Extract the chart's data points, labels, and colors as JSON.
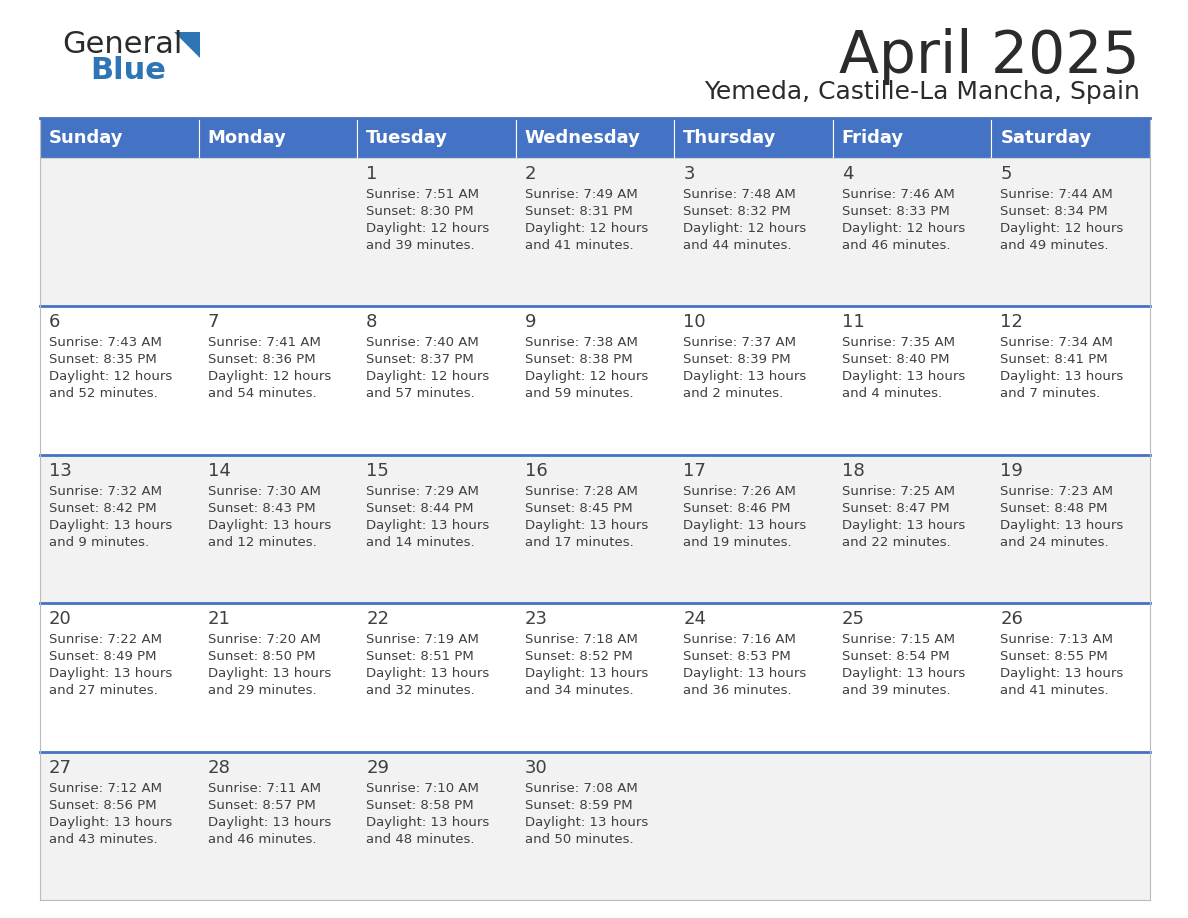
{
  "title": "April 2025",
  "subtitle": "Yemeda, Castille-La Mancha, Spain",
  "days_of_week": [
    "Sunday",
    "Monday",
    "Tuesday",
    "Wednesday",
    "Thursday",
    "Friday",
    "Saturday"
  ],
  "header_bg": "#4472C4",
  "header_text": "#FFFFFF",
  "cell_bg_light": "#F2F2F2",
  "cell_bg_white": "#FFFFFF",
  "row_line_color": "#4472C4",
  "text_color": "#404040",
  "calendar_data": [
    [
      {
        "day": null,
        "sunrise": null,
        "sunset": null,
        "daylight": null
      },
      {
        "day": null,
        "sunrise": null,
        "sunset": null,
        "daylight": null
      },
      {
        "day": 1,
        "sunrise": "7:51 AM",
        "sunset": "8:30 PM",
        "daylight": "12 hours and 39 minutes."
      },
      {
        "day": 2,
        "sunrise": "7:49 AM",
        "sunset": "8:31 PM",
        "daylight": "12 hours and 41 minutes."
      },
      {
        "day": 3,
        "sunrise": "7:48 AM",
        "sunset": "8:32 PM",
        "daylight": "12 hours and 44 minutes."
      },
      {
        "day": 4,
        "sunrise": "7:46 AM",
        "sunset": "8:33 PM",
        "daylight": "12 hours and 46 minutes."
      },
      {
        "day": 5,
        "sunrise": "7:44 AM",
        "sunset": "8:34 PM",
        "daylight": "12 hours and 49 minutes."
      }
    ],
    [
      {
        "day": 6,
        "sunrise": "7:43 AM",
        "sunset": "8:35 PM",
        "daylight": "12 hours and 52 minutes."
      },
      {
        "day": 7,
        "sunrise": "7:41 AM",
        "sunset": "8:36 PM",
        "daylight": "12 hours and 54 minutes."
      },
      {
        "day": 8,
        "sunrise": "7:40 AM",
        "sunset": "8:37 PM",
        "daylight": "12 hours and 57 minutes."
      },
      {
        "day": 9,
        "sunrise": "7:38 AM",
        "sunset": "8:38 PM",
        "daylight": "12 hours and 59 minutes."
      },
      {
        "day": 10,
        "sunrise": "7:37 AM",
        "sunset": "8:39 PM",
        "daylight": "13 hours and 2 minutes."
      },
      {
        "day": 11,
        "sunrise": "7:35 AM",
        "sunset": "8:40 PM",
        "daylight": "13 hours and 4 minutes."
      },
      {
        "day": 12,
        "sunrise": "7:34 AM",
        "sunset": "8:41 PM",
        "daylight": "13 hours and 7 minutes."
      }
    ],
    [
      {
        "day": 13,
        "sunrise": "7:32 AM",
        "sunset": "8:42 PM",
        "daylight": "13 hours and 9 minutes."
      },
      {
        "day": 14,
        "sunrise": "7:30 AM",
        "sunset": "8:43 PM",
        "daylight": "13 hours and 12 minutes."
      },
      {
        "day": 15,
        "sunrise": "7:29 AM",
        "sunset": "8:44 PM",
        "daylight": "13 hours and 14 minutes."
      },
      {
        "day": 16,
        "sunrise": "7:28 AM",
        "sunset": "8:45 PM",
        "daylight": "13 hours and 17 minutes."
      },
      {
        "day": 17,
        "sunrise": "7:26 AM",
        "sunset": "8:46 PM",
        "daylight": "13 hours and 19 minutes."
      },
      {
        "day": 18,
        "sunrise": "7:25 AM",
        "sunset": "8:47 PM",
        "daylight": "13 hours and 22 minutes."
      },
      {
        "day": 19,
        "sunrise": "7:23 AM",
        "sunset": "8:48 PM",
        "daylight": "13 hours and 24 minutes."
      }
    ],
    [
      {
        "day": 20,
        "sunrise": "7:22 AM",
        "sunset": "8:49 PM",
        "daylight": "13 hours and 27 minutes."
      },
      {
        "day": 21,
        "sunrise": "7:20 AM",
        "sunset": "8:50 PM",
        "daylight": "13 hours and 29 minutes."
      },
      {
        "day": 22,
        "sunrise": "7:19 AM",
        "sunset": "8:51 PM",
        "daylight": "13 hours and 32 minutes."
      },
      {
        "day": 23,
        "sunrise": "7:18 AM",
        "sunset": "8:52 PM",
        "daylight": "13 hours and 34 minutes."
      },
      {
        "day": 24,
        "sunrise": "7:16 AM",
        "sunset": "8:53 PM",
        "daylight": "13 hours and 36 minutes."
      },
      {
        "day": 25,
        "sunrise": "7:15 AM",
        "sunset": "8:54 PM",
        "daylight": "13 hours and 39 minutes."
      },
      {
        "day": 26,
        "sunrise": "7:13 AM",
        "sunset": "8:55 PM",
        "daylight": "13 hours and 41 minutes."
      }
    ],
    [
      {
        "day": 27,
        "sunrise": "7:12 AM",
        "sunset": "8:56 PM",
        "daylight": "13 hours and 43 minutes."
      },
      {
        "day": 28,
        "sunrise": "7:11 AM",
        "sunset": "8:57 PM",
        "daylight": "13 hours and 46 minutes."
      },
      {
        "day": 29,
        "sunrise": "7:10 AM",
        "sunset": "8:58 PM",
        "daylight": "13 hours and 48 minutes."
      },
      {
        "day": 30,
        "sunrise": "7:08 AM",
        "sunset": "8:59 PM",
        "daylight": "13 hours and 50 minutes."
      },
      {
        "day": null,
        "sunrise": null,
        "sunset": null,
        "daylight": null
      },
      {
        "day": null,
        "sunrise": null,
        "sunset": null,
        "daylight": null
      },
      {
        "day": null,
        "sunrise": null,
        "sunset": null,
        "daylight": null
      }
    ]
  ],
  "logo_color_general": "#2B2B2B",
  "logo_color_blue": "#2E75B6",
  "logo_triangle_color": "#2E75B6",
  "title_fontsize": 42,
  "subtitle_fontsize": 18,
  "header_fontsize": 13,
  "day_num_fontsize": 13,
  "cell_text_fontsize": 9.5
}
